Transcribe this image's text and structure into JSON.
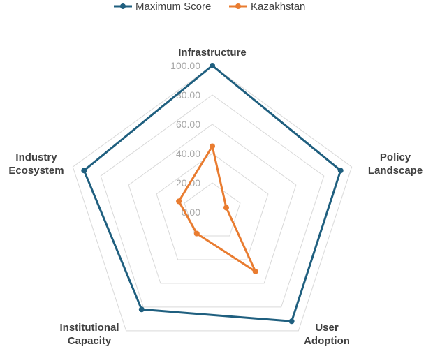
{
  "chart_data": {
    "type": "radar",
    "axes": [
      "Infrastructure",
      "Policy Landscape",
      "User Adoption",
      "Institutional Capacity",
      "Industry Ecosystem"
    ],
    "axis_label_lines": [
      [
        "Infrastructure"
      ],
      [
        "Policy",
        "Landscape"
      ],
      [
        "User",
        "Adoption"
      ],
      [
        "Institutional",
        "Capacity"
      ],
      [
        "Industry",
        "Ecosystem"
      ]
    ],
    "rlim": [
      0,
      100
    ],
    "ticks": [
      "0.00",
      "20.00",
      "40.00",
      "60.00",
      "80.00",
      "100.00"
    ],
    "tick_values": [
      0,
      20,
      40,
      60,
      80,
      100
    ],
    "grid": true,
    "legend_position": "top",
    "series": [
      {
        "name": "Maximum Score",
        "color": "#1f5f7f",
        "values": [
          100,
          92,
          92,
          82,
          92
        ]
      },
      {
        "name": "Kazakhstan",
        "color": "#e97c30",
        "values": [
          45,
          10,
          50,
          18,
          24
        ]
      }
    ]
  }
}
